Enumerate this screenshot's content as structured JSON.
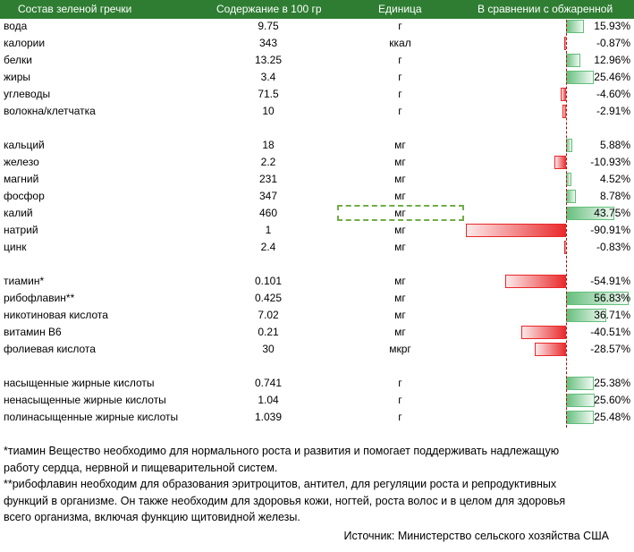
{
  "header": {
    "col_name": "Состав зеленой гречки",
    "col_value": "Содержание в 100 гр",
    "col_unit": "Единица",
    "col_compare": "В сравнении с обжаренной"
  },
  "rows": [
    {
      "name": "вода",
      "value": "9.75",
      "unit": "г",
      "pct": "15.93%",
      "pct_value": 15.93
    },
    {
      "name": "калории",
      "value": "343",
      "unit": "ккал",
      "pct": "-0.87%",
      "pct_value": -0.87
    },
    {
      "name": "белки",
      "value": "13.25",
      "unit": "г",
      "pct": "12.96%",
      "pct_value": 12.96
    },
    {
      "name": "жиры",
      "value": "3.4",
      "unit": "г",
      "pct": "25.46%",
      "pct_value": 25.46
    },
    {
      "name": "углеводы",
      "value": "71.5",
      "unit": "г",
      "pct": "-4.60%",
      "pct_value": -4.6
    },
    {
      "name": "волокна/клетчатка",
      "value": "10",
      "unit": "г",
      "pct": "-2.91%",
      "pct_value": -2.91
    },
    {
      "name": "кальций",
      "value": "18",
      "unit": "мг",
      "pct": "5.88%",
      "pct_value": 5.88
    },
    {
      "name": "железо",
      "value": "2.2",
      "unit": "мг",
      "pct": "-10.93%",
      "pct_value": -10.93
    },
    {
      "name": "магний",
      "value": "231",
      "unit": "мг",
      "pct": "4.52%",
      "pct_value": 4.52
    },
    {
      "name": "фосфор",
      "value": "347",
      "unit": "мг",
      "pct": "8.78%",
      "pct_value": 8.78
    },
    {
      "name": "калий",
      "value": "460",
      "unit": "мг",
      "pct": "43.75%",
      "pct_value": 43.75,
      "selected": true
    },
    {
      "name": "натрий",
      "value": "1",
      "unit": "мг",
      "pct": "-90.91%",
      "pct_value": -90.91
    },
    {
      "name": "цинк",
      "value": "2.4",
      "unit": "мг",
      "pct": "-0.83%",
      "pct_value": -0.83
    },
    {
      "name": "тиамин*",
      "value": "0.101",
      "unit": "мг",
      "pct": "-54.91%",
      "pct_value": -54.91
    },
    {
      "name": "рибофлавин**",
      "value": "0.425",
      "unit": "мг",
      "pct": "56.83%",
      "pct_value": 56.83
    },
    {
      "name": "никотиновая кислота",
      "value": "7.02",
      "unit": "мг",
      "pct": "36.71%",
      "pct_value": 36.71
    },
    {
      "name": "витамин В6",
      "value": "0.21",
      "unit": "мг",
      "pct": "-40.51%",
      "pct_value": -40.51
    },
    {
      "name": "фолиевая кислота",
      "value": "30",
      "unit": "мкрг",
      "pct": "-28.57%",
      "pct_value": -28.57
    },
    {
      "name": "насыщенные жирные кислоты",
      "value": "0.741",
      "unit": "г",
      "pct": "25.38%",
      "pct_value": 25.38
    },
    {
      "name": "ненасыщенные жирные кислоты",
      "value": "1.04",
      "unit": "г",
      "pct": "25.60%",
      "pct_value": 25.6
    },
    {
      "name": "полинасыщенные жирные кислоты",
      "value": "1.039",
      "unit": "г",
      "pct": "25.48%",
      "pct_value": 25.48
    }
  ],
  "colors": {
    "header": "#2e7d32",
    "positive_bar": "#63be7b",
    "negative_bar": "#e8282a"
  },
  "notes": {
    "line1": "*тиамин Вещество необходимо для нормального роста и развития и помогает поддерживать надлежащую",
    "line2": "работу сердца, нервной и пищеварительной систем.",
    "line3": "**рибофлавин необходим для образования эритроцитов, антител, для регуляции роста и репродуктивных",
    "line4": "функций в организме. Он также необходим для здоровья кожи, ногтей, роста волос и в целом для здоровья",
    "line5": "всего организма, включая функцию щитовидной железы."
  },
  "source": "Источник: Министерство сельского хозяйства США"
}
